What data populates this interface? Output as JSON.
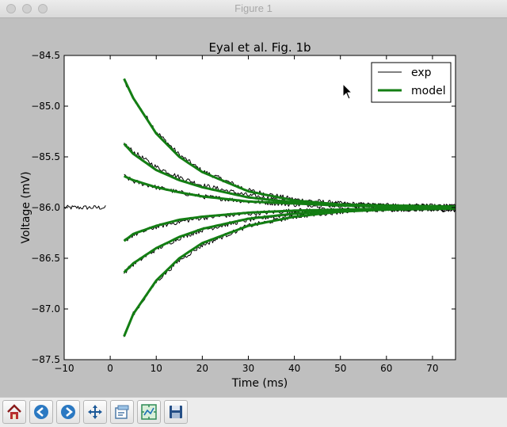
{
  "window": {
    "title": "Figure 1"
  },
  "toolbar": {
    "buttons": [
      {
        "name": "home-button",
        "icon": "home-icon"
      },
      {
        "name": "back-button",
        "icon": "arrow-left-icon"
      },
      {
        "name": "forward-button",
        "icon": "arrow-right-icon"
      },
      {
        "name": "pan-button",
        "icon": "move-icon"
      },
      {
        "name": "zoom-button",
        "icon": "zoom-rect-icon"
      },
      {
        "name": "subplots-button",
        "icon": "subplots-icon"
      },
      {
        "name": "save-button",
        "icon": "save-icon"
      }
    ]
  },
  "chart_data": {
    "type": "line",
    "title": "Eyal et al. Fig. 1b",
    "xlabel": "Time (ms)",
    "ylabel": "Voltage (mV)",
    "xlim": [
      -10,
      75
    ],
    "ylim": [
      -87.5,
      -84.5
    ],
    "xticks": [
      -10,
      0,
      10,
      20,
      30,
      40,
      50,
      60,
      70
    ],
    "xtick_labels": [
      "−10",
      "0",
      "10",
      "20",
      "30",
      "40",
      "50",
      "60",
      "70"
    ],
    "yticks": [
      -84.5,
      -85.0,
      -85.5,
      -86.0,
      -86.5,
      -87.0,
      -87.5
    ],
    "ytick_labels": [
      "−84.5",
      "−85.0",
      "−85.5",
      "−86.0",
      "−86.5",
      "−87.0",
      "−87.5"
    ],
    "grid": false,
    "legend": {
      "position": "top-right",
      "entries": [
        "exp",
        "model"
      ]
    },
    "colors": {
      "exp": "#000000",
      "model": "#137e13"
    },
    "baseline_mV": -86.0,
    "pre_pulse_x": [
      -10,
      -1
    ],
    "series": [
      {
        "name": "exp",
        "x": [
          -10,
          -1,
          3,
          5,
          10,
          15,
          20,
          30,
          40,
          50,
          60,
          75
        ],
        "y": [
          -86.0,
          -86.0,
          -84.75,
          -84.92,
          -85.25,
          -85.48,
          -85.64,
          -85.83,
          -85.92,
          -85.96,
          -85.98,
          -85.99
        ]
      },
      {
        "name": "exp",
        "x": [
          3,
          5,
          10,
          15,
          20,
          30,
          40,
          50,
          60,
          75
        ],
        "y": [
          -85.37,
          -85.45,
          -85.6,
          -85.7,
          -85.78,
          -85.88,
          -85.94,
          -85.97,
          -85.98,
          -85.99
        ]
      },
      {
        "name": "exp",
        "x": [
          3,
          5,
          10,
          15,
          20,
          30,
          40,
          50,
          60,
          75
        ],
        "y": [
          -85.69,
          -85.74,
          -85.8,
          -85.85,
          -85.89,
          -85.94,
          -85.97,
          -85.98,
          -85.99,
          -86.0
        ]
      },
      {
        "name": "exp",
        "x": [
          3,
          5,
          10,
          15,
          20,
          30,
          40,
          50,
          60,
          75
        ],
        "y": [
          -86.33,
          -86.27,
          -86.19,
          -86.14,
          -86.1,
          -86.06,
          -86.03,
          -86.02,
          -86.01,
          -86.02
        ]
      },
      {
        "name": "exp",
        "x": [
          3,
          5,
          10,
          15,
          20,
          30,
          40,
          50,
          60,
          75
        ],
        "y": [
          -86.64,
          -86.56,
          -86.41,
          -86.3,
          -86.22,
          -86.12,
          -86.06,
          -86.03,
          -86.02,
          -86.02
        ]
      },
      {
        "name": "exp",
        "x": [
          3,
          5,
          10,
          15,
          20,
          30,
          40,
          50,
          60,
          75
        ],
        "y": [
          -87.27,
          -87.05,
          -86.73,
          -86.52,
          -86.37,
          -86.18,
          -86.09,
          -86.04,
          -86.02,
          -86.01
        ]
      },
      {
        "name": "model",
        "x": [
          3,
          5,
          10,
          15,
          20,
          30,
          40,
          50,
          60,
          75
        ],
        "y": [
          -84.73,
          -84.92,
          -85.27,
          -85.5,
          -85.65,
          -85.84,
          -85.93,
          -85.97,
          -85.98,
          -85.99
        ]
      },
      {
        "name": "model",
        "x": [
          3,
          5,
          10,
          15,
          20,
          30,
          40,
          50,
          60,
          75
        ],
        "y": [
          -85.37,
          -85.47,
          -85.63,
          -85.73,
          -85.8,
          -85.9,
          -85.95,
          -85.97,
          -85.98,
          -85.99
        ]
      },
      {
        "name": "model",
        "x": [
          3,
          5,
          10,
          15,
          20,
          30,
          40,
          50,
          60,
          75
        ],
        "y": [
          -85.69,
          -85.73,
          -85.8,
          -85.85,
          -85.89,
          -85.94,
          -85.96,
          -85.98,
          -85.99,
          -86.0
        ]
      },
      {
        "name": "model",
        "x": [
          3,
          5,
          10,
          15,
          20,
          30,
          40,
          50,
          60,
          75
        ],
        "y": [
          -86.33,
          -86.26,
          -86.18,
          -86.12,
          -86.09,
          -86.05,
          -86.03,
          -86.02,
          -86.01,
          -86.0
        ]
      },
      {
        "name": "model",
        "x": [
          3,
          5,
          10,
          15,
          20,
          30,
          40,
          50,
          60,
          75
        ],
        "y": [
          -86.64,
          -86.55,
          -86.4,
          -86.29,
          -86.21,
          -86.11,
          -86.06,
          -86.03,
          -86.02,
          -86.01
        ]
      },
      {
        "name": "model",
        "x": [
          3,
          5,
          10,
          15,
          20,
          30,
          40,
          50,
          60,
          75
        ],
        "y": [
          -87.27,
          -87.05,
          -86.72,
          -86.5,
          -86.35,
          -86.18,
          -86.09,
          -86.04,
          -86.02,
          -86.01
        ]
      }
    ]
  }
}
